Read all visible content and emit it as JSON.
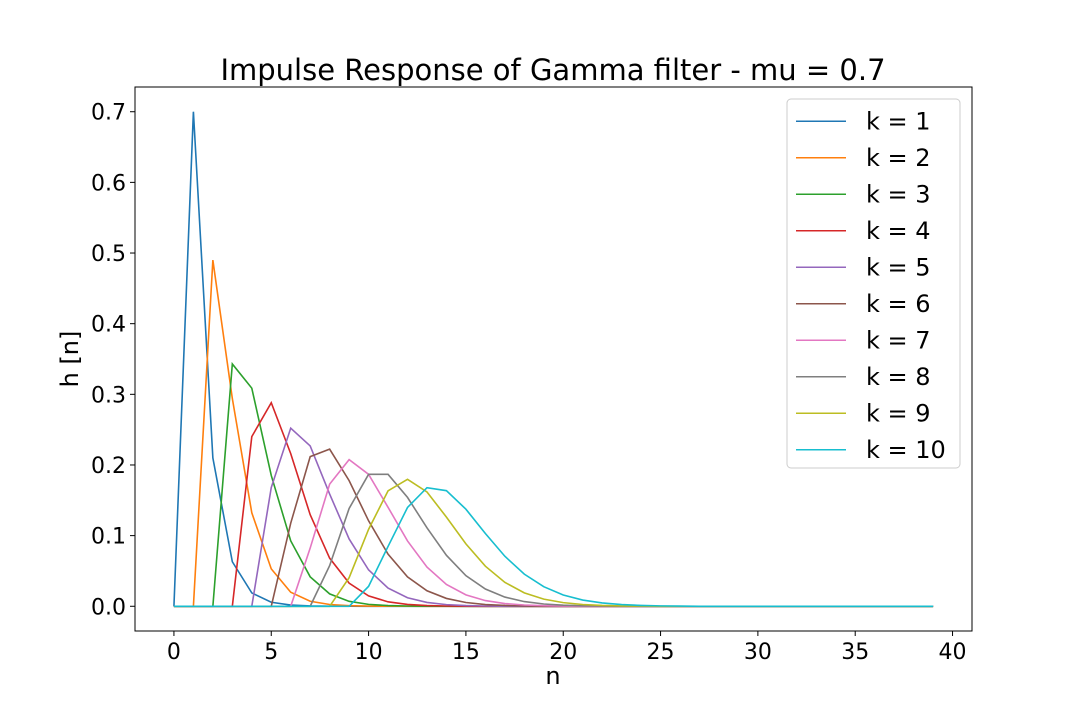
{
  "chart_data": {
    "type": "line",
    "title": "Impulse Response of Gamma filter - mu = 0.7",
    "xlabel": "n",
    "ylabel": "h [n]",
    "xlim": [
      -2,
      41
    ],
    "ylim": [
      -0.035,
      0.735
    ],
    "xticks": [
      0,
      5,
      10,
      15,
      20,
      25,
      30,
      35,
      40
    ],
    "yticks": [
      0.0,
      0.1,
      0.2,
      0.3,
      0.4,
      0.5,
      0.6,
      0.7
    ],
    "ytick_labels": [
      "0.0",
      "0.1",
      "0.2",
      "0.3",
      "0.4",
      "0.5",
      "0.6",
      "0.7"
    ],
    "grid": false,
    "legend_position": "top-right",
    "x": [
      0,
      1,
      2,
      3,
      4,
      5,
      6,
      7,
      8,
      9,
      10,
      11,
      12,
      13,
      14,
      15,
      16,
      17,
      18,
      19,
      20,
      21,
      22,
      23,
      24,
      25,
      26,
      27,
      28,
      29,
      30,
      31,
      32,
      33,
      34,
      35,
      36,
      37,
      38,
      39
    ],
    "series": [
      {
        "name": "k = 1",
        "color": "#1f77b4",
        "values": [
          0,
          0.7,
          0.21,
          0.063,
          0.0189,
          0.00567,
          0.0017,
          0.00051,
          0.000153,
          4.59e-05,
          0,
          0,
          0,
          0,
          0,
          0,
          0,
          0,
          0,
          0,
          0,
          0,
          0,
          0,
          0,
          0,
          0,
          0,
          0,
          0,
          0,
          0,
          0,
          0,
          0,
          0,
          0,
          0,
          0,
          0
        ]
      },
      {
        "name": "k = 2",
        "color": "#ff7f0e",
        "values": [
          0,
          0,
          0.49,
          0.294,
          0.1323,
          0.0529,
          0.0198,
          0.00714,
          0.0025,
          0.000857,
          0.000289,
          9.64e-05,
          3.18e-05,
          0,
          0,
          0,
          0,
          0,
          0,
          0,
          0,
          0,
          0,
          0,
          0,
          0,
          0,
          0,
          0,
          0,
          0,
          0,
          0,
          0,
          0,
          0,
          0,
          0,
          0,
          0
        ]
      },
      {
        "name": "k = 3",
        "color": "#2ca02c",
        "values": [
          0,
          0,
          0,
          0.343,
          0.3087,
          0.1852,
          0.0926,
          0.0417,
          0.0175,
          0.00701,
          0.0027,
          0.00101,
          0.000368,
          0.000132,
          4.64e-05,
          0,
          0,
          0,
          0,
          0,
          0,
          0,
          0,
          0,
          0,
          0,
          0,
          0,
          0,
          0,
          0,
          0,
          0,
          0,
          0,
          0,
          0,
          0,
          0,
          0
        ]
      },
      {
        "name": "k = 4",
        "color": "#d62728",
        "values": [
          0,
          0,
          0,
          0,
          0.2401,
          0.2881,
          0.2161,
          0.1296,
          0.0681,
          0.0327,
          0.0147,
          0.00628,
          0.00257,
          0.00101,
          0.000386,
          0.000144,
          0,
          0,
          0,
          0,
          0,
          0,
          0,
          0,
          0,
          0,
          0,
          0,
          0,
          0,
          0,
          0,
          0,
          0,
          0,
          0,
          0,
          0,
          0,
          0
        ]
      },
      {
        "name": "k = 5",
        "color": "#9467bd",
        "values": [
          0,
          0,
          0,
          0,
          0,
          0.1681,
          0.2521,
          0.2269,
          0.1588,
          0.0953,
          0.0515,
          0.0257,
          0.0121,
          0.00544,
          0.00234,
          0.000969,
          0.00039,
          0,
          0,
          0,
          0,
          0,
          0,
          0,
          0,
          0,
          0,
          0,
          0,
          0,
          0,
          0,
          0,
          0,
          0,
          0,
          0,
          0,
          0,
          0
        ]
      },
      {
        "name": "k = 6",
        "color": "#8c564b",
        "values": [
          0,
          0,
          0,
          0,
          0,
          0,
          0.1176,
          0.2118,
          0.2224,
          0.1779,
          0.121,
          0.0738,
          0.0416,
          0.022,
          0.0111,
          0.00536,
          0.00248,
          0.00112,
          0.00049,
          0,
          0,
          0,
          0,
          0,
          0,
          0,
          0,
          0,
          0,
          0,
          0,
          0,
          0,
          0,
          0,
          0,
          0,
          0,
          0,
          0
        ]
      },
      {
        "name": "k = 7",
        "color": "#e377c2",
        "values": [
          0,
          0,
          0,
          0,
          0,
          0,
          0,
          0.0824,
          0.1729,
          0.2076,
          0.1868,
          0.1401,
          0.0925,
          0.0555,
          0.0308,
          0.0162,
          0.00806,
          0.00389,
          0.00182,
          0.000826,
          0.000364,
          0,
          0,
          0,
          0,
          0,
          0,
          0,
          0,
          0,
          0,
          0,
          0,
          0,
          0,
          0,
          0,
          0,
          0,
          0
        ]
      },
      {
        "name": "k = 8",
        "color": "#7f7f7f",
        "values": [
          0,
          0,
          0,
          0,
          0,
          0,
          0,
          0,
          0.0576,
          0.1384,
          0.1868,
          0.1868,
          0.1541,
          0.111,
          0.0721,
          0.0433,
          0.0244,
          0.013,
          0.00661,
          0.00323,
          0.00152,
          0.000693,
          0.000306,
          0,
          0,
          0,
          0,
          0,
          0,
          0,
          0,
          0,
          0,
          0,
          0,
          0,
          0,
          0,
          0,
          0
        ]
      },
      {
        "name": "k = 9",
        "color": "#bcbd22",
        "values": [
          0,
          0,
          0,
          0,
          0,
          0,
          0,
          0,
          0,
          0.0404,
          0.1089,
          0.1634,
          0.1797,
          0.1618,
          0.1262,
          0.0883,
          0.0567,
          0.0338,
          0.019,
          0.0101,
          0.00515,
          0.00253,
          0.0012,
          0.000547,
          0.000243,
          0,
          0,
          0,
          0,
          0,
          0,
          0,
          0,
          0,
          0,
          0,
          0,
          0,
          0,
          0
        ]
      },
      {
        "name": "k = 10",
        "color": "#17becf",
        "values": [
          0,
          0,
          0,
          0,
          0,
          0,
          0,
          0,
          0,
          0,
          0.0282,
          0.0847,
          0.1398,
          0.1678,
          0.1636,
          0.1374,
          0.103,
          0.0708,
          0.0455,
          0.0277,
          0.016,
          0.00884,
          0.00469,
          0.0024,
          0.00119,
          0.000567,
          0.000263,
          0,
          0,
          0,
          0,
          0,
          0,
          0,
          0,
          0,
          0,
          0,
          0,
          0
        ]
      }
    ]
  }
}
